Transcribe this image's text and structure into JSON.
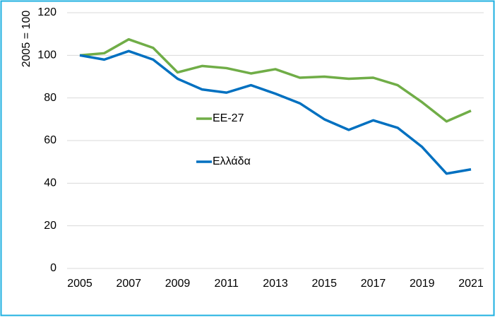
{
  "chart_data": {
    "type": "line",
    "y_label": "2005 = 100",
    "x": [
      2005,
      2006,
      2007,
      2008,
      2009,
      2010,
      2011,
      2012,
      2013,
      2014,
      2015,
      2016,
      2017,
      2018,
      2019,
      2020,
      2021
    ],
    "series": [
      {
        "name": "ΕΕ-27",
        "color": "#70ad47",
        "values": [
          100,
          101,
          107.5,
          103.5,
          92,
          95,
          94,
          91.5,
          93.5,
          89.5,
          90,
          89,
          89.5,
          86,
          78,
          69,
          74
        ]
      },
      {
        "name": "Ελλάδα",
        "color": "#0070c0",
        "values": [
          100,
          98,
          102,
          98,
          89,
          84,
          82.5,
          86,
          82,
          77.5,
          70,
          65,
          69.5,
          66,
          57,
          44.5,
          46.5
        ]
      }
    ],
    "xlim": [
      2005,
      2021
    ],
    "xticks": [
      2005,
      2007,
      2009,
      2011,
      2013,
      2015,
      2017,
      2019,
      2021
    ],
    "ylim": [
      0,
      120
    ],
    "yticks": [
      0,
      20,
      40,
      60,
      80,
      100,
      120
    ],
    "grid": true,
    "legend": "center"
  }
}
